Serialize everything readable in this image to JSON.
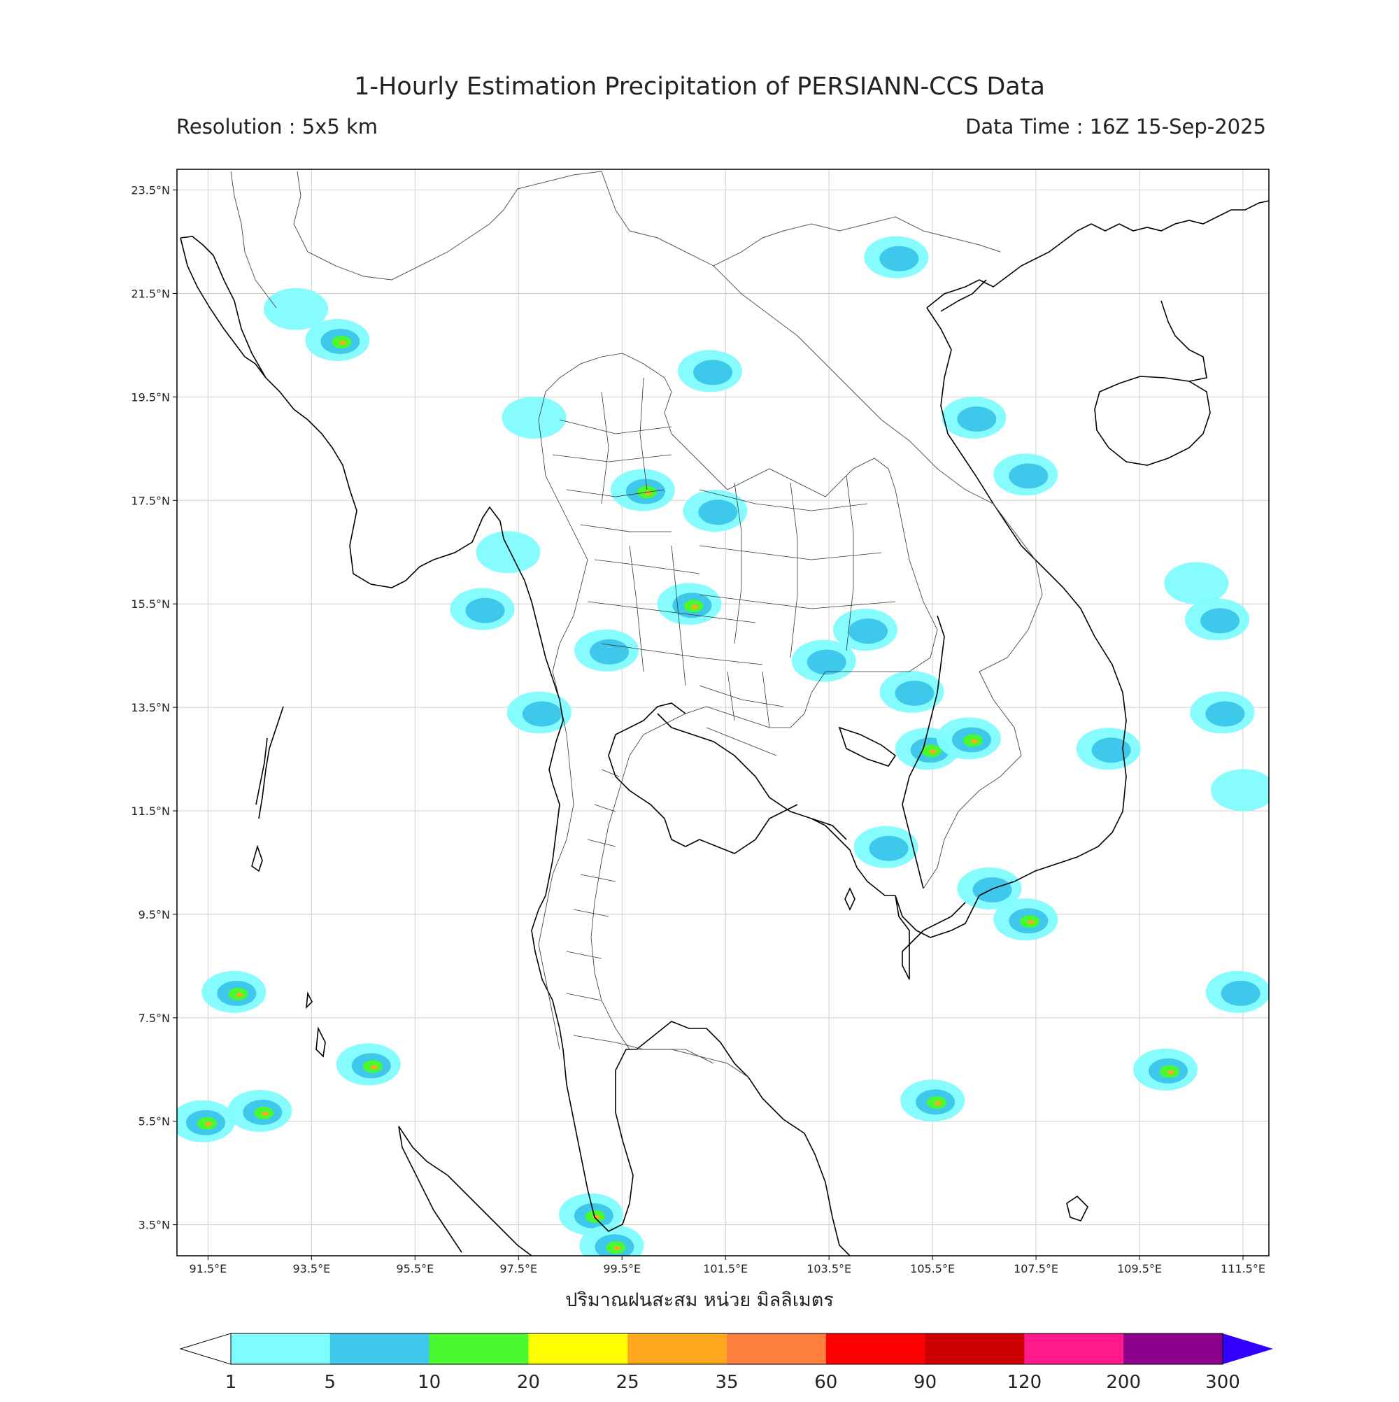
{
  "title": "1-Hourly Estimation Precipitation of PERSIANN-CCS Data",
  "resolution": "Resolution : 5x5 km",
  "data_time": "Data Time : 16Z 15-Sep-2025",
  "colorbar_title": "ปริมาณฝนสะสม หน่วย มิลลิเมตร",
  "lat_ticks": [
    "23.5°N",
    "21.5°N",
    "19.5°N",
    "17.5°N",
    "15.5°N",
    "13.5°N",
    "11.5°N",
    "9.5°N",
    "7.5°N",
    "5.5°N",
    "3.5°N"
  ],
  "lon_ticks": [
    "91.5°E",
    "93.5°E",
    "95.5°E",
    "97.5°E",
    "99.5°E",
    "101.5°E",
    "103.5°E",
    "105.5°E",
    "107.5°E",
    "109.5°E",
    "111.5°E"
  ],
  "colorbar": {
    "levels": [
      "1",
      "5",
      "10",
      "20",
      "25",
      "35",
      "60",
      "90",
      "120",
      "200",
      "300"
    ],
    "colors": [
      "#7ffcff",
      "#3ec8ec",
      "#48fa2e",
      "#ffff00",
      "#ffa921",
      "#ff7f3f",
      "#ff0000",
      "#cc0000",
      "#ff1a8c",
      "#8b008b",
      "#3300ff"
    ]
  },
  "map_extent": {
    "lon": [
      90.9,
      112.0
    ],
    "lat": [
      2.9,
      23.9
    ]
  },
  "rain_cells": [
    {
      "lon": 100.8,
      "lat": 15.5,
      "level": 3
    },
    {
      "lon": 99.9,
      "lat": 17.7,
      "level": 3
    },
    {
      "lon": 101.3,
      "lat": 17.3,
      "level": 2
    },
    {
      "lon": 99.2,
      "lat": 14.6,
      "level": 2
    },
    {
      "lon": 103.4,
      "lat": 14.4,
      "level": 2
    },
    {
      "lon": 104.2,
      "lat": 15.0,
      "level": 2
    },
    {
      "lon": 105.4,
      "lat": 12.7,
      "level": 3
    },
    {
      "lon": 106.2,
      "lat": 12.9,
      "level": 3
    },
    {
      "lon": 105.1,
      "lat": 13.8,
      "level": 2
    },
    {
      "lon": 104.6,
      "lat": 10.8,
      "level": 2
    },
    {
      "lon": 101.2,
      "lat": 20.0,
      "level": 2
    },
    {
      "lon": 96.8,
      "lat": 15.4,
      "level": 2
    },
    {
      "lon": 97.3,
      "lat": 16.5,
      "level": 1
    },
    {
      "lon": 97.8,
      "lat": 19.1,
      "level": 1
    },
    {
      "lon": 104.8,
      "lat": 22.2,
      "level": 2
    },
    {
      "lon": 94.0,
      "lat": 20.6,
      "level": 3
    },
    {
      "lon": 93.2,
      "lat": 21.2,
      "level": 1
    },
    {
      "lon": 92.0,
      "lat": 8.0,
      "level": 3
    },
    {
      "lon": 92.5,
      "lat": 5.7,
      "level": 3
    },
    {
      "lon": 94.6,
      "lat": 6.6,
      "level": 3
    },
    {
      "lon": 91.4,
      "lat": 5.5,
      "level": 3
    },
    {
      "lon": 98.9,
      "lat": 3.7,
      "level": 3
    },
    {
      "lon": 99.3,
      "lat": 3.1,
      "level": 3
    },
    {
      "lon": 105.5,
      "lat": 5.9,
      "level": 3
    },
    {
      "lon": 110.0,
      "lat": 6.5,
      "level": 3
    },
    {
      "lon": 111.4,
      "lat": 8.0,
      "level": 2
    },
    {
      "lon": 111.0,
      "lat": 15.2,
      "level": 2
    },
    {
      "lon": 110.6,
      "lat": 15.9,
      "level": 1
    },
    {
      "lon": 108.9,
      "lat": 12.7,
      "level": 2
    },
    {
      "lon": 111.1,
      "lat": 13.4,
      "level": 2
    },
    {
      "lon": 111.5,
      "lat": 11.9,
      "level": 1
    },
    {
      "lon": 106.6,
      "lat": 10.0,
      "level": 2
    },
    {
      "lon": 107.3,
      "lat": 9.4,
      "level": 3
    },
    {
      "lon": 97.9,
      "lat": 13.4,
      "level": 2
    },
    {
      "lon": 106.3,
      "lat": 19.1,
      "level": 2
    },
    {
      "lon": 107.3,
      "lat": 18.0,
      "level": 2
    }
  ]
}
